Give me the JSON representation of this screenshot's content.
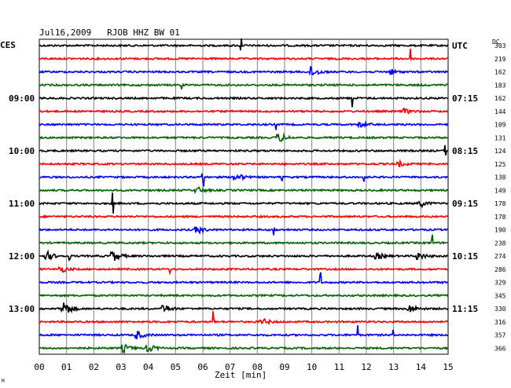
{
  "chart_data": {
    "type": "line",
    "title": "Jul16,2009   RJOB HHZ BW 01",
    "left_zone": "CES",
    "right_zone": "UTC",
    "dc_label": "DC",
    "xlabel": "Zeit [min]",
    "xlim": [
      0,
      15
    ],
    "x_ticks": [
      "00",
      "01",
      "02",
      "03",
      "04",
      "05",
      "06",
      "07",
      "08",
      "09",
      "10",
      "11",
      "12",
      "13",
      "14",
      "15"
    ],
    "colors": [
      "#000000",
      "#ff0000",
      "#0000ff",
      "#006400"
    ],
    "left_times": [
      {
        "row": 4,
        "label": "09:00"
      },
      {
        "row": 8,
        "label": "10:00"
      },
      {
        "row": 12,
        "label": "11:00"
      },
      {
        "row": 16,
        "label": "12:00"
      },
      {
        "row": 20,
        "label": "13:00"
      }
    ],
    "right_times": [
      {
        "row": 0,
        "label": "UTC"
      },
      {
        "row": 4,
        "label": "07:15"
      },
      {
        "row": 8,
        "label": "08:15"
      },
      {
        "row": 12,
        "label": "09:15"
      },
      {
        "row": 16,
        "label": "10:15"
      },
      {
        "row": 20,
        "label": "11:15"
      }
    ],
    "dc_offsets": [
      303,
      219,
      162,
      183,
      162,
      144,
      109,
      131,
      124,
      125,
      138,
      149,
      178,
      178,
      190,
      238,
      274,
      286,
      329,
      345,
      330,
      316,
      357,
      366
    ],
    "events": [
      {
        "row": 0,
        "t": 7.4,
        "amp": 14,
        "kind": "spike"
      },
      {
        "row": 1,
        "t": 13.6,
        "amp": 14,
        "kind": "spike"
      },
      {
        "row": 2,
        "t": 10.0,
        "amp": 7,
        "kind": "burst"
      },
      {
        "row": 2,
        "t": 12.9,
        "amp": 3,
        "kind": "burst"
      },
      {
        "row": 3,
        "t": 5.2,
        "amp": 6,
        "kind": "spike"
      },
      {
        "row": 4,
        "t": 11.5,
        "amp": 11,
        "kind": "spike"
      },
      {
        "row": 5,
        "t": 13.4,
        "amp": 3,
        "kind": "burst"
      },
      {
        "row": 6,
        "t": 8.7,
        "amp": 6,
        "kind": "spike"
      },
      {
        "row": 6,
        "t": 11.8,
        "amp": 3,
        "kind": "burst"
      },
      {
        "row": 7,
        "t": 8.8,
        "amp": 6,
        "kind": "burst"
      },
      {
        "row": 8,
        "t": 14.9,
        "amp": 7,
        "kind": "spike"
      },
      {
        "row": 9,
        "t": 13.2,
        "amp": 3,
        "kind": "burst"
      },
      {
        "row": 10,
        "t": 6.0,
        "amp": 14,
        "kind": "spike"
      },
      {
        "row": 10,
        "t": 7.2,
        "amp": 6,
        "kind": "burst"
      },
      {
        "row": 10,
        "t": 8.9,
        "amp": 5,
        "kind": "spike"
      },
      {
        "row": 10,
        "t": 11.9,
        "amp": 10,
        "kind": "spike"
      },
      {
        "row": 11,
        "t": 5.8,
        "amp": 4,
        "kind": "burst"
      },
      {
        "row": 12,
        "t": 2.7,
        "amp": 14,
        "kind": "spike"
      },
      {
        "row": 12,
        "t": 14.0,
        "amp": 4,
        "kind": "burst"
      },
      {
        "row": 14,
        "t": 5.8,
        "amp": 5,
        "kind": "burst"
      },
      {
        "row": 14,
        "t": 8.6,
        "amp": 13,
        "kind": "spike"
      },
      {
        "row": 15,
        "t": 14.4,
        "amp": 10,
        "kind": "spike"
      },
      {
        "row": 16,
        "t": 0.3,
        "amp": 5,
        "kind": "burst"
      },
      {
        "row": 16,
        "t": 2.7,
        "amp": 7,
        "kind": "burst"
      },
      {
        "row": 16,
        "t": 1.1,
        "amp": 5,
        "kind": "spike"
      },
      {
        "row": 16,
        "t": 12.4,
        "amp": 4,
        "kind": "burst"
      },
      {
        "row": 16,
        "t": 13.9,
        "amp": 5,
        "kind": "burst"
      },
      {
        "row": 17,
        "t": 0.8,
        "amp": 4,
        "kind": "burst"
      },
      {
        "row": 17,
        "t": 4.8,
        "amp": 9,
        "kind": "spike"
      },
      {
        "row": 18,
        "t": 10.3,
        "amp": 14,
        "kind": "spike"
      },
      {
        "row": 20,
        "t": 0.9,
        "amp": 11,
        "kind": "burst"
      },
      {
        "row": 20,
        "t": 4.6,
        "amp": 5,
        "kind": "burst"
      },
      {
        "row": 20,
        "t": 13.6,
        "amp": 5,
        "kind": "burst"
      },
      {
        "row": 21,
        "t": 6.4,
        "amp": 14,
        "kind": "spike"
      },
      {
        "row": 21,
        "t": 8.2,
        "amp": 4,
        "kind": "burst"
      },
      {
        "row": 22,
        "t": 3.6,
        "amp": 5,
        "kind": "burst"
      },
      {
        "row": 22,
        "t": 11.7,
        "amp": 14,
        "kind": "spike"
      },
      {
        "row": 22,
        "t": 13.0,
        "amp": 6,
        "kind": "spike"
      },
      {
        "row": 23,
        "t": 3.1,
        "amp": 5,
        "kind": "burst"
      },
      {
        "row": 23,
        "t": 4.0,
        "amp": 5,
        "kind": "burst"
      }
    ],
    "grid": true,
    "footer_mark": "M"
  }
}
